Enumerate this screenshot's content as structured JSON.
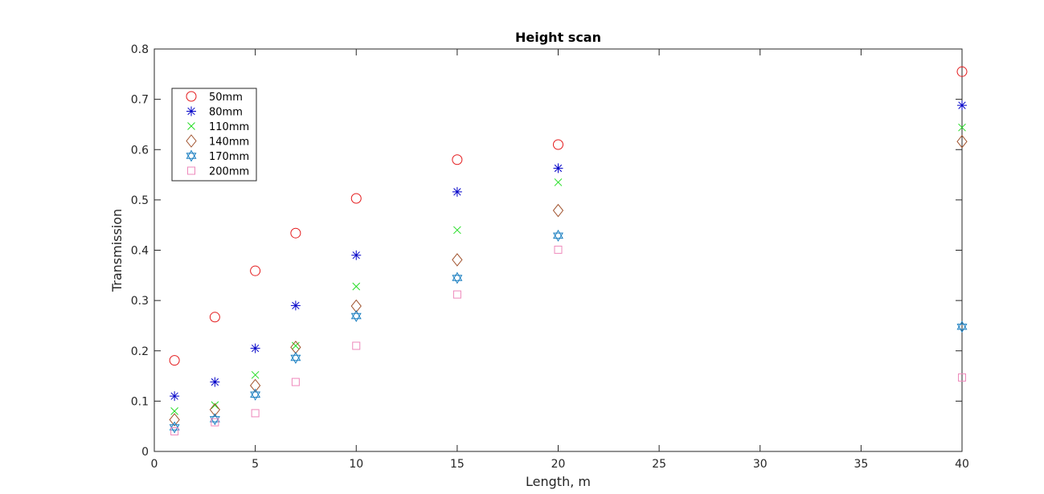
{
  "chart_data": {
    "type": "scatter",
    "title": "Height scan",
    "xlabel": "Length, m",
    "ylabel": "Transmission",
    "xlim": [
      0,
      40
    ],
    "ylim": [
      0,
      0.8
    ],
    "xticks": [
      0,
      5,
      10,
      15,
      20,
      25,
      30,
      35,
      40
    ],
    "yticks": [
      0,
      0.1,
      0.2,
      0.3,
      0.4,
      0.5,
      0.6,
      0.7,
      0.8
    ],
    "xtick_labels": [
      "0",
      "5",
      "10",
      "15",
      "20",
      "25",
      "30",
      "35",
      "40"
    ],
    "ytick_labels": [
      "0",
      "0.1",
      "0.2",
      "0.3",
      "0.4",
      "0.5",
      "0.6",
      "0.7",
      "0.8"
    ],
    "grid": false,
    "legend_position": "top-left",
    "series": [
      {
        "name": "50mm",
        "marker": "circle",
        "color": "#e41a1c",
        "x": [
          1,
          3,
          5,
          7,
          10,
          15,
          20,
          40
        ],
        "y": [
          0.181,
          0.267,
          0.359,
          0.434,
          0.503,
          0.58,
          0.61,
          0.755
        ]
      },
      {
        "name": "80mm",
        "marker": "asterisk",
        "color": "#0000c8",
        "x": [
          1,
          3,
          5,
          7,
          10,
          15,
          20,
          40
        ],
        "y": [
          0.11,
          0.138,
          0.205,
          0.29,
          0.39,
          0.516,
          0.563,
          0.688
        ]
      },
      {
        "name": "110mm",
        "marker": "x",
        "color": "#22dd22",
        "x": [
          1,
          3,
          5,
          7,
          10,
          15,
          20,
          40
        ],
        "y": [
          0.08,
          0.092,
          0.152,
          0.21,
          0.328,
          0.44,
          0.535,
          0.644
        ]
      },
      {
        "name": "140mm",
        "marker": "diamond",
        "color": "#a0522d",
        "x": [
          1,
          3,
          5,
          7,
          10,
          15,
          20,
          40
        ],
        "y": [
          0.063,
          0.083,
          0.131,
          0.207,
          0.289,
          0.381,
          0.479,
          0.616
        ]
      },
      {
        "name": "170mm",
        "marker": "hexagram",
        "color": "#1a7fc1",
        "x": [
          1,
          3,
          5,
          7,
          10,
          15,
          20,
          40
        ],
        "y": [
          0.048,
          0.064,
          0.113,
          0.186,
          0.269,
          0.345,
          0.429,
          0.248
        ]
      },
      {
        "name": "200mm",
        "marker": "square",
        "color": "#ee88bb",
        "x": [
          1,
          3,
          5,
          7,
          10,
          15,
          20,
          40
        ],
        "y": [
          0.04,
          0.058,
          0.076,
          0.138,
          0.21,
          0.312,
          0.401,
          0.147
        ]
      }
    ]
  }
}
